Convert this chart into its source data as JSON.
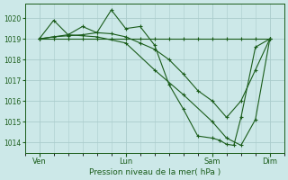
{
  "bg_color": "#cce8e8",
  "grid_color": "#aacccc",
  "line_color": "#1a5c1a",
  "xlabel": "Pression niveau de la mer( hPa )",
  "ylim": [
    1013.5,
    1020.7
  ],
  "yticks": [
    1014,
    1015,
    1016,
    1017,
    1018,
    1019,
    1020
  ],
  "xtick_labels": [
    "Ven",
    "Lun",
    "Sam",
    "Dim"
  ],
  "xtick_pos": [
    2,
    14,
    26,
    34
  ],
  "xlim": [
    0,
    36
  ],
  "minor_xticks": [
    0,
    2,
    4,
    6,
    8,
    10,
    12,
    14,
    16,
    18,
    20,
    22,
    24,
    26,
    28,
    30,
    32,
    34,
    36
  ],
  "series": [
    {
      "x": [
        2,
        4,
        6,
        8,
        10,
        12,
        14,
        16,
        18,
        20,
        22,
        24,
        26,
        28,
        30,
        32,
        34
      ],
      "y": [
        1019.0,
        1019.0,
        1019.0,
        1019.0,
        1019.0,
        1019.0,
        1019.0,
        1019.0,
        1019.0,
        1019.0,
        1019.0,
        1019.0,
        1019.0,
        1019.0,
        1019.0,
        1019.0,
        1019.0
      ]
    },
    {
      "x": [
        2,
        6,
        10,
        14,
        18,
        22,
        26,
        28,
        30,
        32,
        34
      ],
      "y": [
        1019.0,
        1019.2,
        1019.1,
        1018.8,
        1017.5,
        1016.3,
        1015.0,
        1014.2,
        1013.85,
        1015.1,
        1019.0
      ]
    },
    {
      "x": [
        2,
        4,
        6,
        8,
        10,
        12,
        14,
        16,
        18,
        20,
        22,
        24,
        26,
        27,
        28,
        29,
        30,
        32,
        34
      ],
      "y": [
        1019.0,
        1019.9,
        1019.2,
        1019.6,
        1019.3,
        1020.4,
        1019.5,
        1019.6,
        1018.7,
        1016.8,
        1015.6,
        1014.3,
        1014.2,
        1014.1,
        1013.9,
        1013.85,
        1015.2,
        1018.6,
        1019.0
      ]
    },
    {
      "x": [
        2,
        4,
        6,
        8,
        10,
        12,
        14,
        16,
        18,
        20,
        22,
        24,
        26,
        28,
        30,
        32,
        34
      ],
      "y": [
        1019.0,
        1019.1,
        1019.15,
        1019.2,
        1019.3,
        1019.25,
        1019.1,
        1018.8,
        1018.5,
        1018.0,
        1017.3,
        1016.5,
        1016.0,
        1015.2,
        1016.0,
        1017.5,
        1019.0
      ]
    }
  ]
}
